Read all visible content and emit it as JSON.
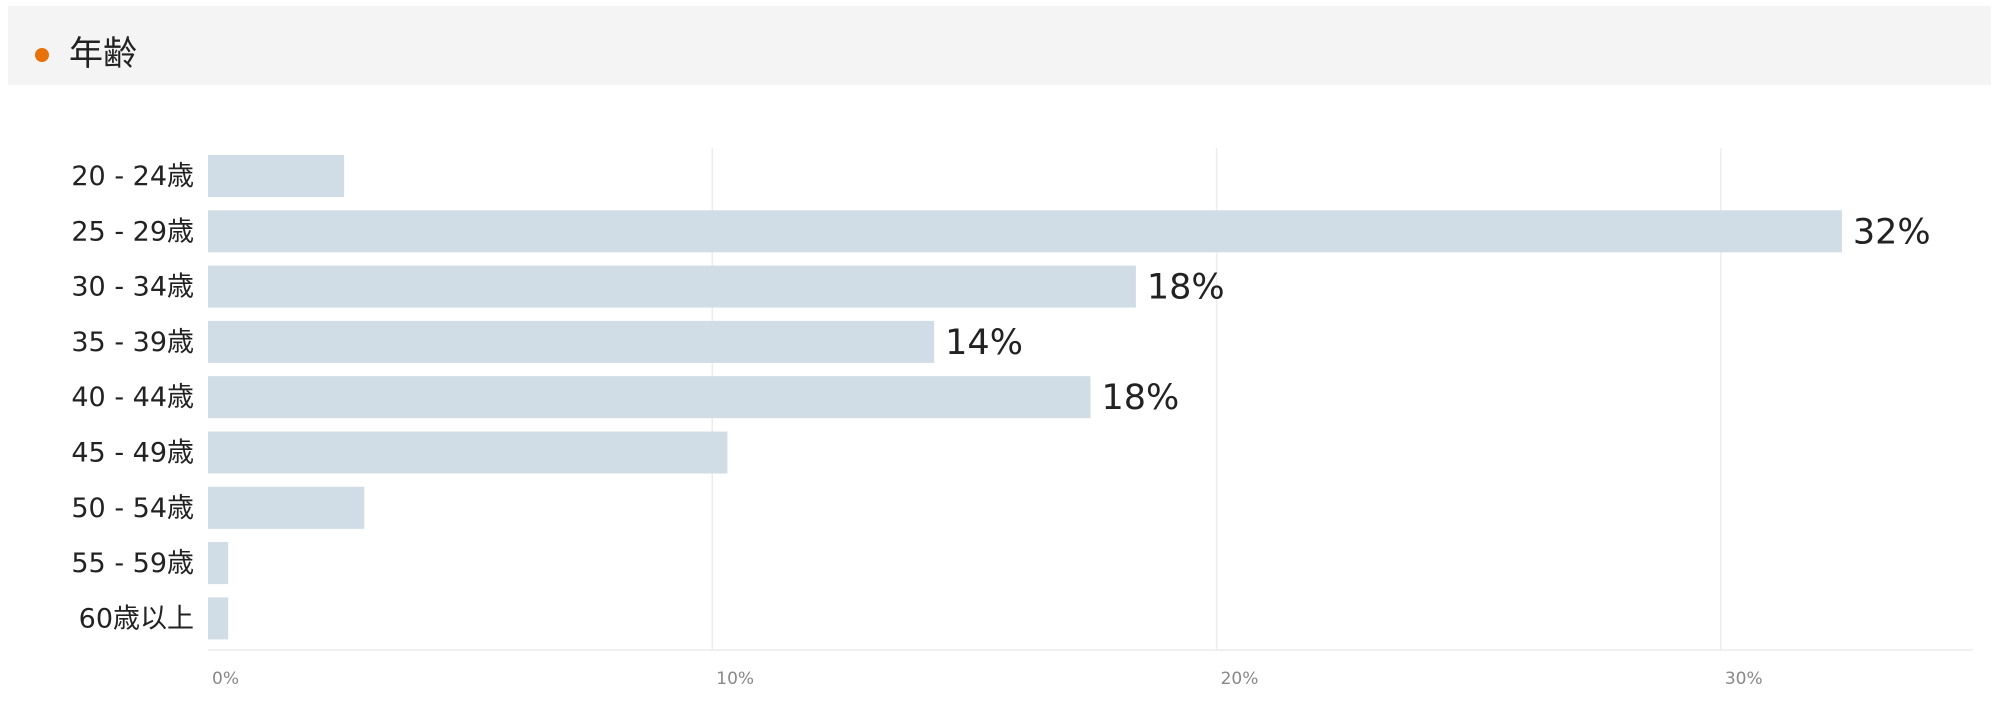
{
  "header": {
    "title": "年齢"
  },
  "colors": {
    "header_dot": "#e8710a",
    "bar": "#d0dce6",
    "grid": "#ececec"
  },
  "chart_data": {
    "type": "bar",
    "orientation": "horizontal",
    "categories": [
      "20 - 24歳",
      "25 - 29歳",
      "30 - 34歳",
      "35 - 39歳",
      "40 - 44歳",
      "45 - 49歳",
      "50 - 54歳",
      "55 - 59歳",
      "60歳以上"
    ],
    "values": [
      2.7,
      32.4,
      18.4,
      14.4,
      17.5,
      10.3,
      3.1,
      0.4,
      0.4
    ],
    "value_labels": [
      "",
      "32%",
      "18%",
      "14%",
      "18%",
      "",
      "",
      "",
      ""
    ],
    "xlim": [
      0,
      35
    ],
    "x_ticks": [
      0,
      10,
      20,
      30
    ],
    "x_tick_labels": [
      "0%",
      "10%",
      "20%",
      "30%"
    ],
    "grid": true
  }
}
